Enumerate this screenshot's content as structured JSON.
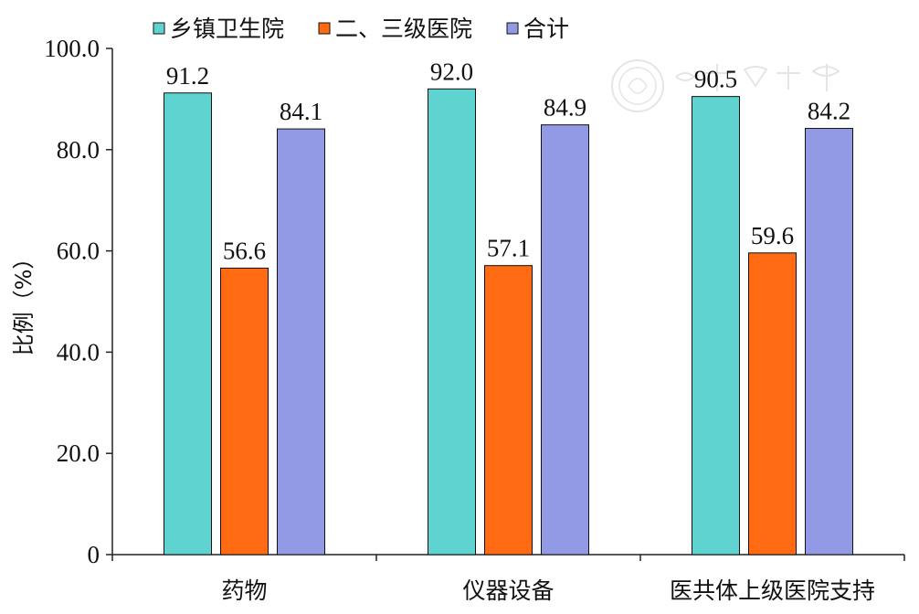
{
  "chart_data": {
    "type": "bar",
    "categories": [
      "药物",
      "仪器设备",
      "医共体上级医院支持"
    ],
    "series": [
      {
        "name": "乡镇卫生院",
        "values": [
          91.2,
          92.0,
          90.5
        ],
        "value_labels": [
          "91.2",
          "92.0",
          "90.5"
        ],
        "color": "#5fd3cf"
      },
      {
        "name": "二、三级医院",
        "values": [
          56.6,
          57.1,
          59.6
        ],
        "value_labels": [
          "56.6",
          "57.1",
          "59.6"
        ],
        "color": "#ff6a13"
      },
      {
        "name": "合计",
        "values": [
          84.1,
          84.9,
          84.2
        ],
        "value_labels": [
          "84.1",
          "84.9",
          "84.2"
        ],
        "color": "#929ae6"
      }
    ],
    "ylabel": "比例（%）",
    "ylim": [
      0,
      100
    ],
    "yticks": [
      "0",
      "20.0",
      "40.0",
      "60.0",
      "80.0",
      "100.0"
    ],
    "yticks_values": [
      0,
      20,
      40,
      60,
      80,
      100
    ],
    "grid": false,
    "legend_position": "top"
  }
}
